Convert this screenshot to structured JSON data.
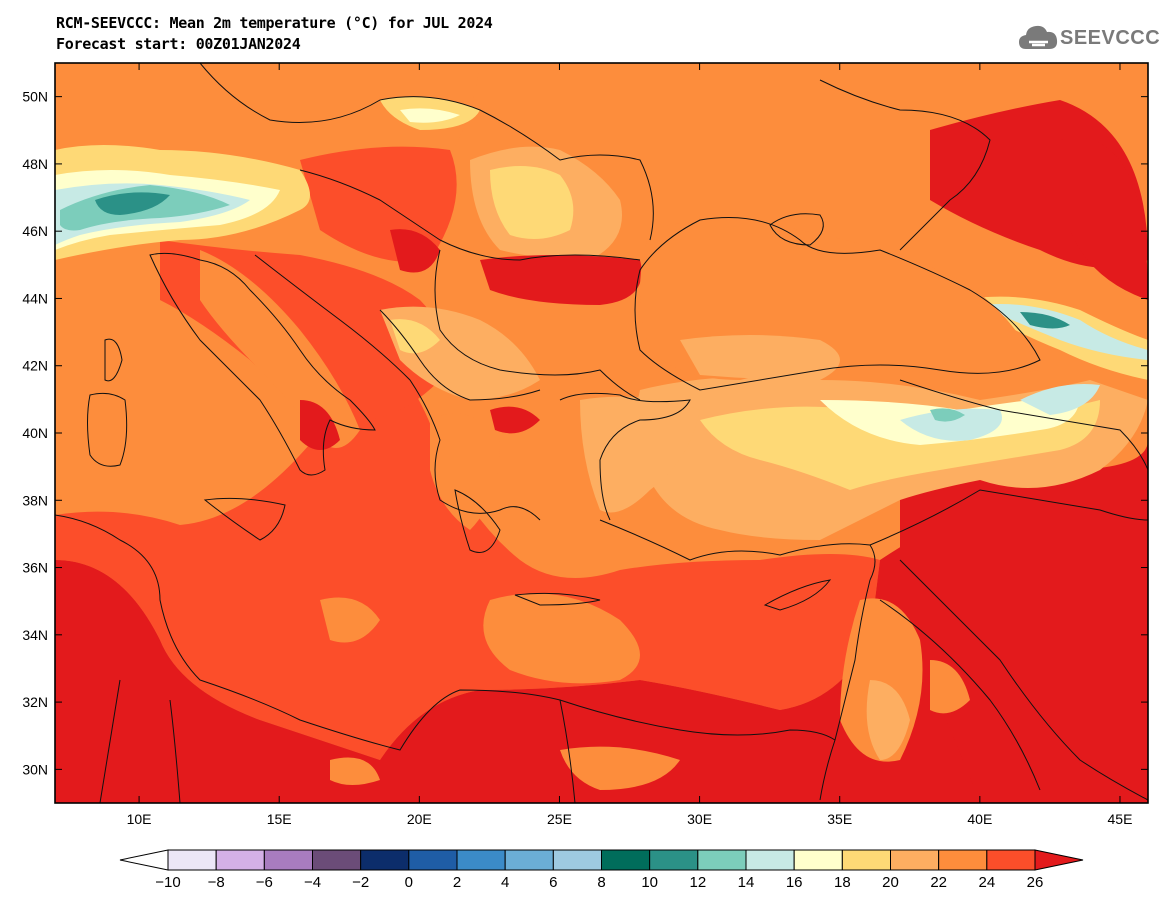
{
  "title": {
    "line1": "RCM-SEEVCCC: Mean 2m temperature (°C) for JUL 2024",
    "line2": "Forecast start: 00Z01JAN2024"
  },
  "logo": {
    "text": "SEEVCCC",
    "icon": "cloud-icon",
    "color": "#7a7a7a"
  },
  "map": {
    "projection": "lat-lon",
    "lon_range": [
      7,
      46
    ],
    "lat_range": [
      29,
      51
    ],
    "lon_ticks": [
      {
        "value": 10,
        "label": "10E"
      },
      {
        "value": 15,
        "label": "15E"
      },
      {
        "value": 20,
        "label": "20E"
      },
      {
        "value": 25,
        "label": "25E"
      },
      {
        "value": 30,
        "label": "30E"
      },
      {
        "value": 35,
        "label": "35E"
      },
      {
        "value": 40,
        "label": "40E"
      },
      {
        "value": 45,
        "label": "45E"
      }
    ],
    "lat_ticks": [
      {
        "value": 30,
        "label": "30N"
      },
      {
        "value": 32,
        "label": "32N"
      },
      {
        "value": 34,
        "label": "34N"
      },
      {
        "value": 36,
        "label": "36N"
      },
      {
        "value": 38,
        "label": "38N"
      },
      {
        "value": 40,
        "label": "40N"
      },
      {
        "value": 42,
        "label": "42N"
      },
      {
        "value": 44,
        "label": "44N"
      },
      {
        "value": 46,
        "label": "46N"
      },
      {
        "value": 48,
        "label": "48N"
      },
      {
        "value": 50,
        "label": "50N"
      }
    ],
    "background_color": "#fd8d3c"
  },
  "colorbar": {
    "labels": [
      "−10",
      "−8",
      "−6",
      "−4",
      "−2",
      "0",
      "2",
      "4",
      "6",
      "8",
      "10",
      "12",
      "14",
      "16",
      "18",
      "20",
      "22",
      "24",
      "26"
    ],
    "colors": [
      "#ece6f7",
      "#d4b0e6",
      "#a87cbf",
      "#6b4c78",
      "#0c2d6b",
      "#1f5da6",
      "#3b8bc8",
      "#6baed6",
      "#9ecae1",
      "#006d5b",
      "#2b9187",
      "#7ccdbb",
      "#c7eae5",
      "#ffffcc",
      "#fed976",
      "#fdae61",
      "#fd8d3c",
      "#fc4e2a"
    ],
    "under_color": "#ffffff",
    "over_color": "#e31a1c"
  }
}
